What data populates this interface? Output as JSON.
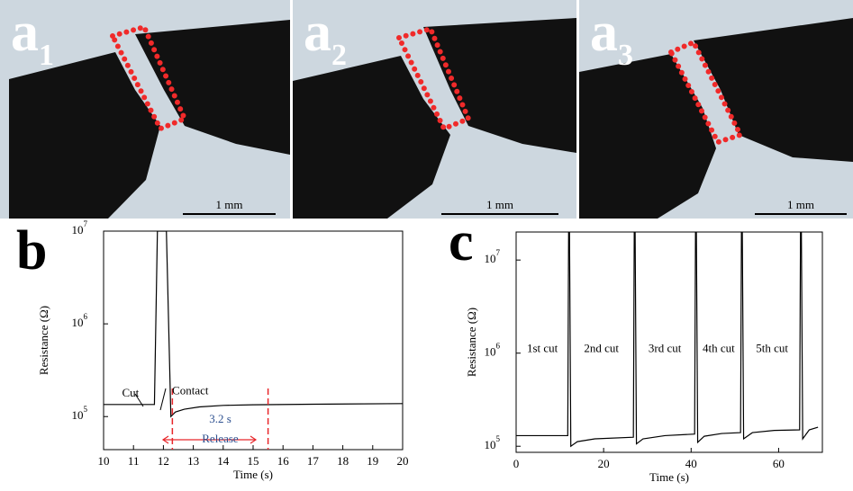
{
  "panels": [
    {
      "letter": "a",
      "sub": "1",
      "scale": "1 mm"
    },
    {
      "letter": "a",
      "sub": "2",
      "scale": "1 mm"
    },
    {
      "letter": "a",
      "sub": "3",
      "scale": "1 mm"
    }
  ],
  "chart_letters": [
    "b",
    "c"
  ],
  "chart_data": [
    {
      "type": "line",
      "x_label": "Time (s)",
      "y_label": "Resistance (Ω)",
      "log_y": true,
      "xlim": [
        10,
        20
      ],
      "xticks": [
        10,
        11,
        12,
        13,
        14,
        15,
        16,
        17,
        18,
        19,
        20
      ],
      "ylim": [
        44000,
        10000000
      ],
      "yticks": [
        {
          "value": 100000,
          "label": "10",
          "exponent": "5"
        },
        {
          "value": 1000000,
          "label": "10",
          "exponent": "6"
        },
        {
          "value": 10000000,
          "label": "10",
          "exponent": "7"
        }
      ],
      "series": [
        {
          "color": "#000000",
          "x": [
            10,
            11.7,
            11.8,
            11.9,
            12.1,
            12.25,
            12.4,
            12.7,
            13.2,
            14,
            15,
            17,
            20
          ],
          "values": [
            135000,
            135000,
            10000000,
            10000000,
            10000000,
            100000,
            112000,
            120000,
            127000,
            132000,
            134000,
            136000,
            138000
          ]
        }
      ],
      "markers": [
        12.3,
        15.5
      ],
      "marker_color": "#e8262a",
      "annotations": [
        {
          "text": "Cut",
          "x": 10.9,
          "y": 175000,
          "color": "#000000"
        },
        {
          "text": "Contact",
          "x": 12.9,
          "y": 185000,
          "color": "#000000"
        },
        {
          "text": "3.2 s",
          "x": 13.9,
          "y": 92000,
          "color": "#2c4f8f"
        },
        {
          "text": "Release",
          "x": 13.9,
          "y": 56000,
          "color": "#2c4f8f"
        }
      ]
    },
    {
      "type": "line",
      "x_label": "Time (s)",
      "y_label": "Resistance (Ω)",
      "log_y": true,
      "xlim": [
        0,
        70
      ],
      "xticks": [
        0,
        20,
        40,
        60
      ],
      "ylim": [
        86000,
        20000000
      ],
      "yticks": [
        {
          "value": 100000,
          "label": "10",
          "exponent": "5"
        },
        {
          "value": 1000000,
          "label": "10",
          "exponent": "6"
        },
        {
          "value": 10000000,
          "label": "10",
          "exponent": "7"
        }
      ],
      "series": [
        {
          "color": "#000000",
          "x": [
            0,
            11.8,
            12,
            12.2,
            12.5,
            14,
            18,
            26.8,
            27,
            27.2,
            27.5,
            29,
            34,
            40.8,
            41,
            41.2,
            41.5,
            43,
            47,
            51.3,
            51.5,
            51.7,
            52,
            54,
            59,
            64.8,
            65,
            65.2,
            65.5,
            67,
            69
          ],
          "values": [
            130000,
            130000,
            20000000,
            20000000,
            100000,
            112000,
            120000,
            125000,
            20000000,
            20000000,
            106000,
            120000,
            130000,
            135000,
            20000000,
            20000000,
            110000,
            128000,
            137000,
            140000,
            20000000,
            20000000,
            120000,
            140000,
            148000,
            150000,
            20000000,
            20000000,
            120000,
            150000,
            160000
          ]
        }
      ],
      "annotations": [
        {
          "text": "1st cut",
          "x": 6,
          "y": 1100000,
          "color": "#000000"
        },
        {
          "text": "2nd cut",
          "x": 19.5,
          "y": 1100000,
          "color": "#000000"
        },
        {
          "text": "3rd cut",
          "x": 34,
          "y": 1100000,
          "color": "#000000"
        },
        {
          "text": "4th cut",
          "x": 46.3,
          "y": 1100000,
          "color": "#000000"
        },
        {
          "text": "5th cut",
          "x": 58.5,
          "y": 1100000,
          "color": "#000000"
        }
      ]
    }
  ]
}
